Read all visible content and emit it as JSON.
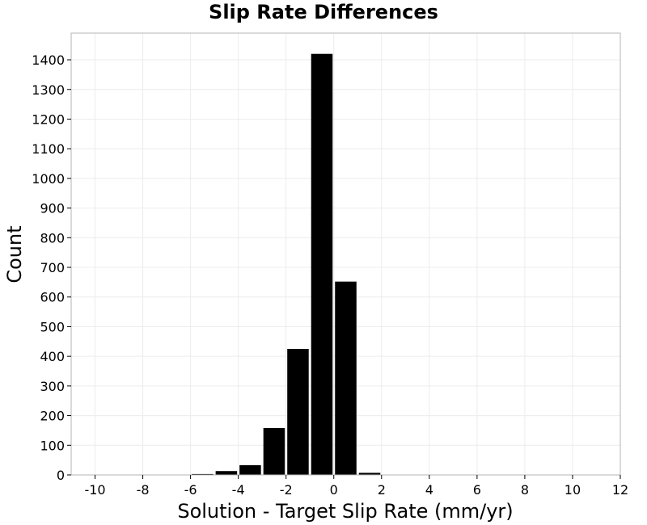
{
  "chart_data": {
    "type": "bar",
    "title": "Slip Rate Differences",
    "xlabel": "Solution - Target Slip Rate (mm/yr)",
    "ylabel": "Count",
    "xlim": [
      -11,
      12
    ],
    "ylim": [
      0,
      1490
    ],
    "xticks": [
      -10,
      -8,
      -6,
      -4,
      -2,
      0,
      2,
      4,
      6,
      8,
      10,
      12
    ],
    "yticks": [
      0,
      100,
      200,
      300,
      400,
      500,
      600,
      700,
      800,
      900,
      1000,
      1100,
      1200,
      1300,
      1400
    ],
    "grid": true,
    "bin_width": 1,
    "bar_color": "#000000",
    "bins": [
      {
        "center": -10.5,
        "value": 0
      },
      {
        "center": -9.5,
        "value": 0
      },
      {
        "center": -8.5,
        "value": 0
      },
      {
        "center": -7.5,
        "value": 0
      },
      {
        "center": -6.5,
        "value": 0
      },
      {
        "center": -5.5,
        "value": 3
      },
      {
        "center": -4.5,
        "value": 13
      },
      {
        "center": -3.5,
        "value": 33
      },
      {
        "center": -2.5,
        "value": 158
      },
      {
        "center": -1.5,
        "value": 425
      },
      {
        "center": -0.5,
        "value": 1420
      },
      {
        "center": 0.5,
        "value": 652
      },
      {
        "center": 1.5,
        "value": 7
      },
      {
        "center": 2.5,
        "value": 0
      },
      {
        "center": 3.5,
        "value": 0
      },
      {
        "center": 4.5,
        "value": 0
      },
      {
        "center": 5.5,
        "value": 0
      },
      {
        "center": 6.5,
        "value": 0
      },
      {
        "center": 7.5,
        "value": 0
      },
      {
        "center": 8.5,
        "value": 0
      },
      {
        "center": 9.5,
        "value": 0
      },
      {
        "center": 10.5,
        "value": 0
      },
      {
        "center": 11.5,
        "value": 0
      }
    ]
  }
}
